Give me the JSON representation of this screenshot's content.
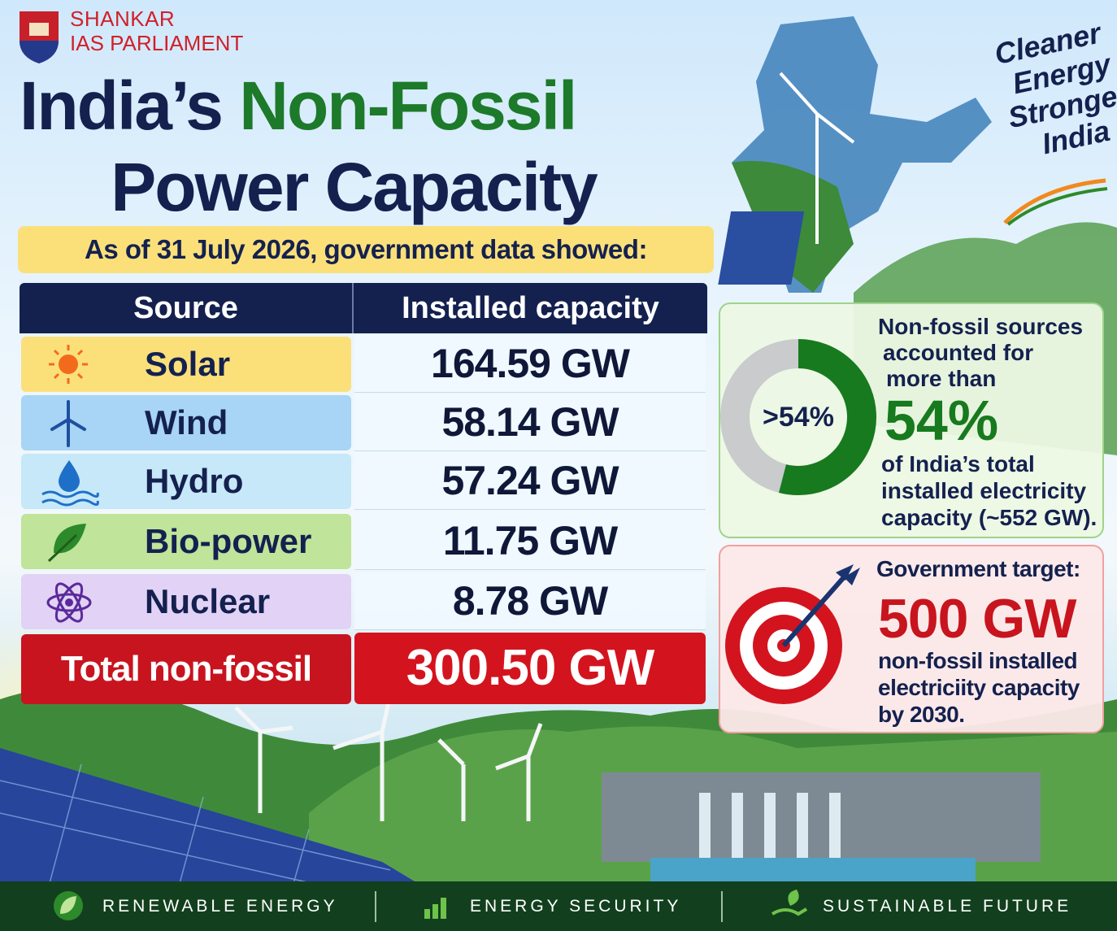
{
  "brand": {
    "line1": "SHANKAR",
    "line2": "IAS PARLIAMENT"
  },
  "title": {
    "part1": "India’s",
    "part2": "Non-Fossil",
    "line2": "Power Capacity"
  },
  "subtitle": "As of 31 July 2026, government data showed:",
  "table": {
    "header": [
      "Source",
      "Installed capacity"
    ],
    "rows": [
      [
        "Solar",
        "164.59 GW"
      ],
      [
        "Wind",
        "58.14 GW"
      ],
      [
        "Hydro",
        "57.24 GW"
      ],
      [
        "Bio-power",
        "11.75 GW"
      ],
      [
        "Nuclear",
        "8.78 GW"
      ]
    ],
    "total": [
      "Total non-fossil",
      "300.50 GW"
    ]
  },
  "tagline": [
    "Cleaner",
    "Energy",
    "Stronger",
    "India"
  ],
  "share_card": {
    "donut": {
      "value": 54,
      "label": ">54%"
    },
    "lines_top": [
      "Non-fossil sources",
      "accounted for",
      "more than"
    ],
    "big": "54%",
    "lines_bottom": [
      "of India’s total",
      "installed electricity",
      "capacity (~552 GW)."
    ]
  },
  "target_card": {
    "heading": "Government target:",
    "big": "500 GW",
    "lines": [
      "non-fossil installed",
      "electriciity capacity",
      "by 2030."
    ]
  },
  "footer": [
    "RENEWABLE ENERGY",
    "ENERGY SECURITY",
    "SUSTAINABLE FUTURE"
  ]
}
